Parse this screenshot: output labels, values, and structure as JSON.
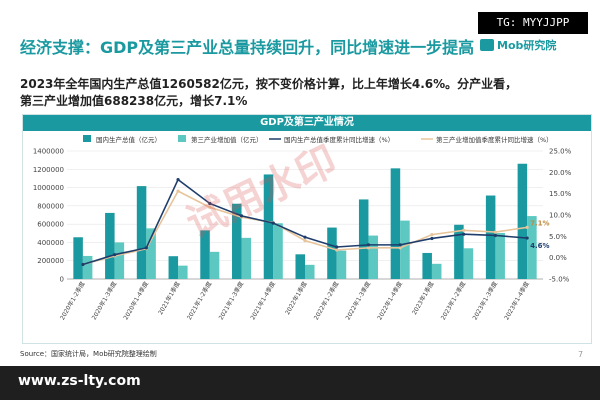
{
  "overlay": {
    "tg": "TG: MYYJJPP",
    "watermark": "试用水印",
    "footer_url": "www.zs-lty.com"
  },
  "header": {
    "headline": "经济支撑：GDP及第三产业总量持续回升，同比增速进一步提高",
    "brand": "Mob研究院"
  },
  "summary": {
    "line1": "2023年全年国内生产总值1260582亿元，按不变价格计算，比上年增长4.6%。分产业看，",
    "line2": "第三产业增加值688238亿元，增长7.1%"
  },
  "chart_panel": {
    "title": "GDP及第三产业情况"
  },
  "footer": {
    "source": "Source：国家统计局，Mob研究院整理绘制",
    "page": "7"
  },
  "colors": {
    "gdp_bar": "#1a9aa0",
    "tertiary_bar": "#5cc8c1",
    "gdp_line": "#1f3d6b",
    "tertiary_line": "#e8c49a",
    "header_bg": "#1a9aa0"
  },
  "chart_data": {
    "type": "bar",
    "categories": [
      "2020年1-2季度",
      "2020年1-3季度",
      "2020年1-4季度",
      "2021年1季度",
      "2021年1-2季度",
      "2021年1-3季度",
      "2021年1-4季度",
      "2022年1季度",
      "2022年1-2季度",
      "2022年1-3季度",
      "2022年1-4季度",
      "2023年1季度",
      "2023年1-2季度",
      "2023年1-3季度",
      "2023年1-4季度"
    ],
    "series": [
      {
        "name": "国内生产总值（亿元）",
        "type": "bar",
        "axis": "left",
        "values": [
          456614,
          722786,
          1015986,
          249310,
          532167,
          823131,
          1143670,
          270178,
          562642,
          870269,
          1210207,
          284997,
          593034,
          913027,
          1260582
        ]
      },
      {
        "name": "第三产业增加值（亿元）",
        "type": "bar",
        "axis": "left",
        "values": [
          252000,
          400000,
          553977,
          146000,
          297000,
          450000,
          609680,
          155000,
          310000,
          475000,
          638698,
          166000,
          336000,
          503000,
          688238
        ]
      },
      {
        "name": "国内生产总值季度累计同比增速（%）",
        "type": "line",
        "axis": "right",
        "values": [
          -1.6,
          0.7,
          2.3,
          18.3,
          12.7,
          9.8,
          8.1,
          4.8,
          2.5,
          3.0,
          3.0,
          4.5,
          5.5,
          5.2,
          4.6
        ]
      },
      {
        "name": "第三产业增加值季度累计同比增速（%）",
        "type": "line",
        "axis": "right",
        "values": [
          -1.6,
          0.4,
          2.1,
          15.6,
          11.8,
          9.5,
          8.2,
          4.0,
          1.8,
          2.3,
          2.3,
          5.4,
          6.4,
          6.0,
          7.1
        ]
      }
    ],
    "y_left": {
      "min": 0,
      "max": 1400000,
      "ticks": [
        "0",
        "200000",
        "400000",
        "600000",
        "800000",
        "1000000",
        "1200000",
        "1400000"
      ]
    },
    "y_right": {
      "min": -5,
      "max": 25,
      "ticks": [
        "-5.0%",
        "0.0%",
        "5.0%",
        "10.0%",
        "15.0%",
        "20.0%",
        "25.0%"
      ]
    },
    "end_labels": {
      "gdp": "4.6%",
      "tertiary": "7.1%"
    },
    "grid": true,
    "legend_position": "top"
  }
}
